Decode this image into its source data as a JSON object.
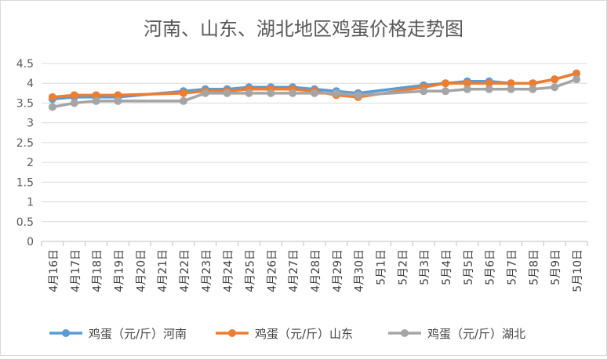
{
  "chart_data": {
    "type": "line",
    "title": "河南、山东、湖北地区鸡蛋价格走势图",
    "xlabel": "",
    "ylabel": "",
    "ylim": [
      0,
      4.5
    ],
    "yticks": [
      "0",
      "0.5",
      "1",
      "1.5",
      "2",
      "2.5",
      "3",
      "3.5",
      "4",
      "4.5"
    ],
    "grid": true,
    "legend_position": "bottom",
    "categories": [
      "4月16日",
      "4月17日",
      "4月18日",
      "4月19日",
      "4月20日",
      "4月21日",
      "4月22日",
      "4月23日",
      "4月24日",
      "4月25日",
      "4月26日",
      "4月27日",
      "4月28日",
      "4月29日",
      "4月30日",
      "5月1日",
      "5月2日",
      "5月3日",
      "5月4日",
      "5月5日",
      "5月6日",
      "5月7日",
      "5月8日",
      "5月9日",
      "5月10日"
    ],
    "series": [
      {
        "name": "鸡蛋（元/斤）河南",
        "color": "#5b9bd5",
        "values": [
          3.6,
          3.65,
          3.65,
          3.65,
          null,
          null,
          3.8,
          3.85,
          3.85,
          3.9,
          3.9,
          3.9,
          3.85,
          3.8,
          3.75,
          null,
          null,
          3.95,
          4.0,
          4.05,
          4.05,
          4.0,
          4.0,
          4.1,
          4.25
        ]
      },
      {
        "name": "鸡蛋（元/斤）山东",
        "color": "#ed7d31",
        "values": [
          3.65,
          3.7,
          3.7,
          3.7,
          null,
          null,
          3.75,
          3.8,
          3.8,
          3.85,
          3.85,
          3.85,
          3.8,
          3.7,
          3.65,
          null,
          null,
          3.9,
          4.0,
          4.0,
          4.0,
          4.0,
          4.0,
          4.1,
          4.25
        ]
      },
      {
        "name": "鸡蛋（元/斤）湖北",
        "color": "#a5a5a5",
        "values": [
          3.4,
          3.5,
          3.55,
          3.55,
          null,
          null,
          3.55,
          3.75,
          3.75,
          3.75,
          3.75,
          3.75,
          3.75,
          3.75,
          3.7,
          null,
          null,
          3.8,
          3.8,
          3.85,
          3.85,
          3.85,
          3.85,
          3.9,
          4.1
        ]
      }
    ]
  }
}
